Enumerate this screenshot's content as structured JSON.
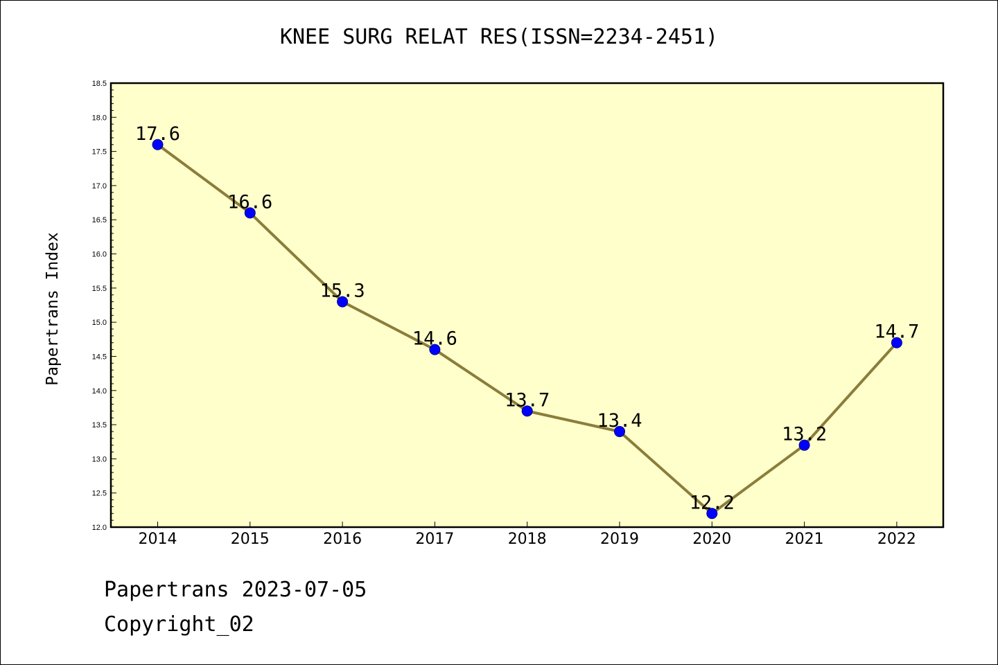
{
  "chart_data": {
    "type": "line",
    "title": "KNEE SURG RELAT RES(ISSN=2234-2451)",
    "xlabel": "",
    "ylabel": "Papertrans Index",
    "categories": [
      "2014",
      "2015",
      "2016",
      "2017",
      "2018",
      "2019",
      "2020",
      "2021",
      "2022"
    ],
    "series": [
      {
        "values": [
          17.6,
          16.6,
          15.3,
          14.6,
          13.7,
          13.4,
          12.2,
          13.2,
          14.7
        ],
        "data_labels": [
          "17.6",
          "16.6",
          "15.3",
          "14.6",
          "13.7",
          "13.4",
          "12.2",
          "13.2",
          "14.7"
        ]
      }
    ],
    "ylim": [
      12.0,
      18.5
    ],
    "yticks": [
      "12.0",
      "12.5",
      "13.0",
      "13.5",
      "14.0",
      "14.5",
      "15.0",
      "15.5",
      "16.0",
      "16.5",
      "17.0",
      "17.5",
      "18.0",
      "18.5"
    ],
    "grid": false,
    "legend": "none",
    "colors": {
      "plot_background": "#ffffcc",
      "line": "#8b7d3a",
      "marker": "#0000ff"
    }
  },
  "footer": {
    "line1": "Papertrans 2023-07-05",
    "line2": "Copyright_02"
  }
}
